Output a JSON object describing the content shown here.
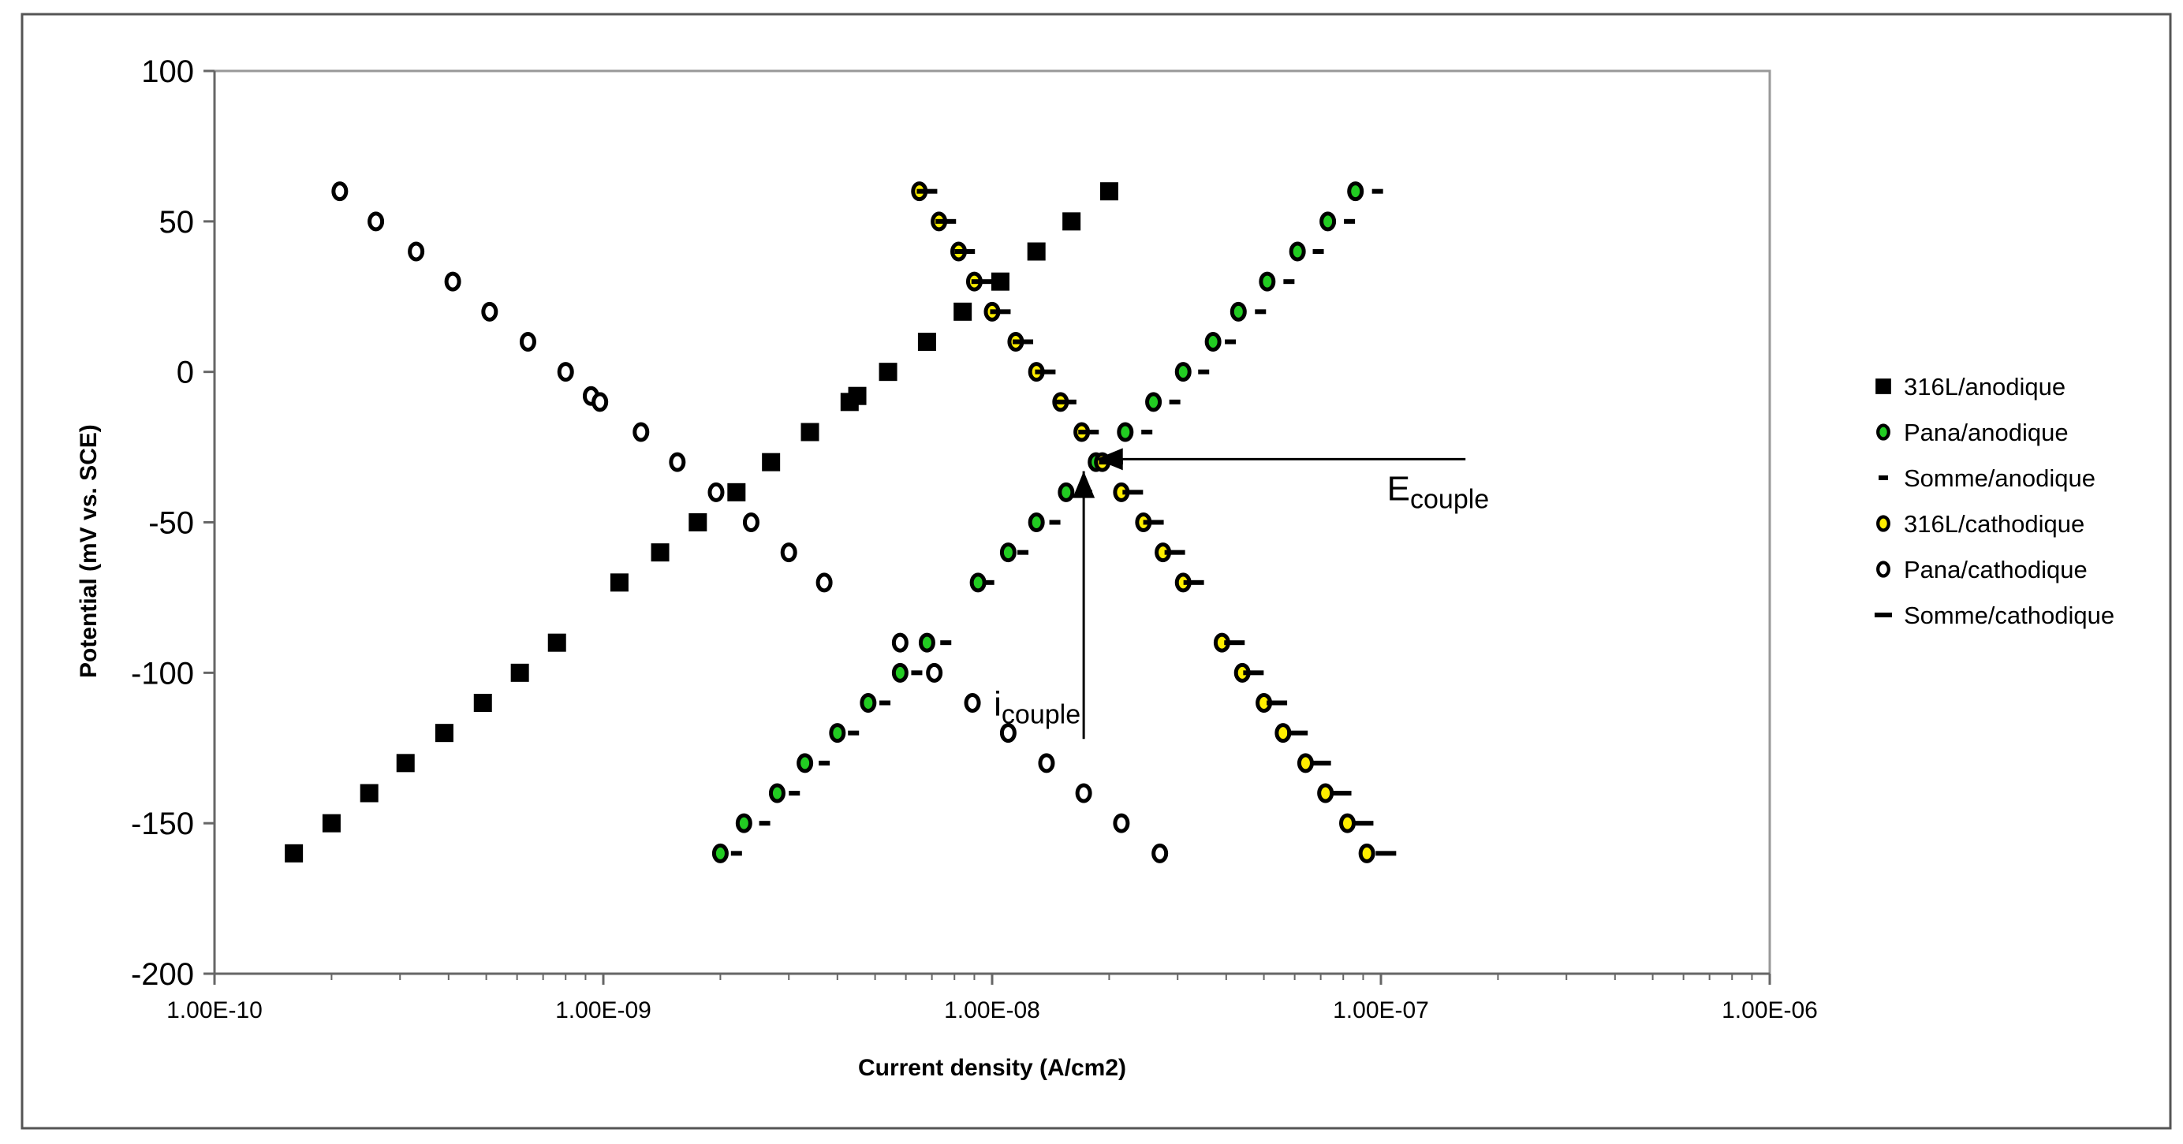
{
  "chart_data": {
    "type": "scatter",
    "xscale": "log",
    "xlim": [
      1e-10,
      1e-06
    ],
    "ylim": [
      -200,
      100
    ],
    "xlabel": "Current density (A/cm2)",
    "ylabel": "Potential (mV vs. SCE)",
    "xticks": [
      "1.00E-10",
      "1.00E-09",
      "1.00E-08",
      "1.00E-07",
      "1.00E-06"
    ],
    "yticks": [
      "100",
      "50",
      "0",
      "-50",
      "-100",
      "-150",
      "-200"
    ],
    "grid": false,
    "legend_position": "right",
    "series": [
      {
        "name": "316L/anodique",
        "marker": "square",
        "fill": "#000000",
        "stroke": "#000000",
        "points": [
          [
            1.6e-10,
            -160
          ],
          [
            2e-10,
            -150
          ],
          [
            2.5e-10,
            -140
          ],
          [
            3.1e-10,
            -130
          ],
          [
            3.9e-10,
            -120
          ],
          [
            4.9e-10,
            -110
          ],
          [
            6.1e-10,
            -100
          ],
          [
            7.6e-10,
            -90
          ],
          [
            1.1e-09,
            -70
          ],
          [
            1.4e-09,
            -60
          ],
          [
            1.75e-09,
            -50
          ],
          [
            2.2e-09,
            -40
          ],
          [
            2.7e-09,
            -30
          ],
          [
            3.4e-09,
            -20
          ],
          [
            4.3e-09,
            -10
          ],
          [
            4.5e-09,
            -8
          ],
          [
            5.4e-09,
            0
          ],
          [
            6.8e-09,
            10
          ],
          [
            8.4e-09,
            20
          ],
          [
            1.05e-08,
            30
          ],
          [
            1.3e-08,
            40
          ],
          [
            1.6e-08,
            50
          ],
          [
            2e-08,
            60
          ]
        ]
      },
      {
        "name": "Pana/anodique",
        "marker": "circle",
        "fill": "#22cc22",
        "stroke": "#000000",
        "points": [
          [
            2e-09,
            -160
          ],
          [
            2.3e-09,
            -150
          ],
          [
            2.8e-09,
            -140
          ],
          [
            3.3e-09,
            -130
          ],
          [
            4e-09,
            -120
          ],
          [
            4.8e-09,
            -110
          ],
          [
            5.8e-09,
            -100
          ],
          [
            6.8e-09,
            -90
          ],
          [
            9.2e-09,
            -70
          ],
          [
            1.1e-08,
            -60
          ],
          [
            1.3e-08,
            -50
          ],
          [
            1.55e-08,
            -40
          ],
          [
            1.85e-08,
            -30
          ],
          [
            2.2e-08,
            -20
          ],
          [
            2.6e-08,
            -10
          ],
          [
            3.1e-08,
            0
          ],
          [
            3.7e-08,
            10
          ],
          [
            4.3e-08,
            20
          ],
          [
            5.1e-08,
            30
          ],
          [
            6.1e-08,
            40
          ],
          [
            7.3e-08,
            50
          ],
          [
            8.6e-08,
            60
          ]
        ]
      },
      {
        "name": "Somme/anodique",
        "marker": "dash-short",
        "fill": "#000000",
        "stroke": "#000000",
        "points": [
          [
            2.2e-09,
            -160
          ],
          [
            2.6e-09,
            -150
          ],
          [
            3.1e-09,
            -140
          ],
          [
            3.7e-09,
            -130
          ],
          [
            4.4e-09,
            -120
          ],
          [
            5.3e-09,
            -110
          ],
          [
            6.4e-09,
            -100
          ],
          [
            7.6e-09,
            -90
          ],
          [
            9.8e-09,
            -70
          ],
          [
            1.2e-08,
            -60
          ],
          [
            1.45e-08,
            -50
          ],
          [
            1.75e-08,
            -40
          ],
          [
            2.1e-08,
            -30
          ],
          [
            2.5e-08,
            -20
          ],
          [
            2.95e-08,
            -10
          ],
          [
            3.5e-08,
            0
          ],
          [
            4.1e-08,
            10
          ],
          [
            4.9e-08,
            20
          ],
          [
            5.8e-08,
            30
          ],
          [
            6.9e-08,
            40
          ],
          [
            8.3e-08,
            50
          ],
          [
            9.8e-08,
            60
          ]
        ]
      },
      {
        "name": "316L/cathodique",
        "marker": "circle",
        "fill": "#ffee00",
        "stroke": "#000000",
        "points": [
          [
            6.5e-09,
            60
          ],
          [
            7.3e-09,
            50
          ],
          [
            8.2e-09,
            40
          ],
          [
            9e-09,
            30
          ],
          [
            1e-08,
            20
          ],
          [
            1.15e-08,
            10
          ],
          [
            1.3e-08,
            0
          ],
          [
            1.5e-08,
            -10
          ],
          [
            1.7e-08,
            -20
          ],
          [
            1.92e-08,
            -30
          ],
          [
            2.15e-08,
            -40
          ],
          [
            2.45e-08,
            -50
          ],
          [
            2.75e-08,
            -60
          ],
          [
            3.1e-08,
            -70
          ],
          [
            3.9e-08,
            -90
          ],
          [
            4.4e-08,
            -100
          ],
          [
            5e-08,
            -110
          ],
          [
            5.6e-08,
            -120
          ],
          [
            6.4e-08,
            -130
          ],
          [
            7.2e-08,
            -140
          ],
          [
            8.2e-08,
            -150
          ],
          [
            9.2e-08,
            -160
          ]
        ]
      },
      {
        "name": "Pana/cathodique",
        "marker": "circle",
        "fill": "#ffffff",
        "stroke": "#000000",
        "points": [
          [
            2.1e-10,
            60
          ],
          [
            2.6e-10,
            50
          ],
          [
            3.3e-10,
            40
          ],
          [
            4.1e-10,
            30
          ],
          [
            5.1e-10,
            20
          ],
          [
            6.4e-10,
            10
          ],
          [
            8e-10,
            0
          ],
          [
            9.3e-10,
            -8
          ],
          [
            9.8e-10,
            -10
          ],
          [
            1.25e-09,
            -20
          ],
          [
            1.55e-09,
            -30
          ],
          [
            1.95e-09,
            -40
          ],
          [
            2.4e-09,
            -50
          ],
          [
            3e-09,
            -60
          ],
          [
            3.7e-09,
            -70
          ],
          [
            5.8e-09,
            -90
          ],
          [
            7.1e-09,
            -100
          ],
          [
            8.9e-09,
            -110
          ],
          [
            1.1e-08,
            -120
          ],
          [
            1.38e-08,
            -130
          ],
          [
            1.72e-08,
            -140
          ],
          [
            2.15e-08,
            -150
          ],
          [
            2.7e-08,
            -160
          ]
        ]
      },
      {
        "name": "Somme/cathodique",
        "marker": "dash-long",
        "fill": "#000000",
        "stroke": "#000000",
        "points": [
          [
            6.8e-09,
            60
          ],
          [
            7.6e-09,
            50
          ],
          [
            8.5e-09,
            40
          ],
          [
            9.4e-09,
            30
          ],
          [
            1.05e-08,
            20
          ],
          [
            1.2e-08,
            10
          ],
          [
            1.37e-08,
            0
          ],
          [
            1.55e-08,
            -10
          ],
          [
            1.77e-08,
            -20
          ],
          [
            2e-08,
            -30
          ],
          [
            2.3e-08,
            -40
          ],
          [
            2.6e-08,
            -50
          ],
          [
            2.95e-08,
            -60
          ],
          [
            3.3e-08,
            -70
          ],
          [
            4.2e-08,
            -90
          ],
          [
            4.7e-08,
            -100
          ],
          [
            5.4e-08,
            -110
          ],
          [
            6.1e-08,
            -120
          ],
          [
            7e-08,
            -130
          ],
          [
            7.9e-08,
            -140
          ],
          [
            9e-08,
            -150
          ],
          [
            1.03e-07,
            -160
          ]
        ]
      }
    ],
    "annotations": [
      {
        "label": "E",
        "subscript": "couple",
        "arrow_from": [
          1.65e-07,
          -29
        ],
        "arrow_to": [
          1.85e-08,
          -29
        ]
      },
      {
        "label": "i",
        "subscript": "couple",
        "arrow_from": [
          1.72e-08,
          -122
        ],
        "arrow_to": [
          1.72e-08,
          -33
        ]
      }
    ]
  }
}
